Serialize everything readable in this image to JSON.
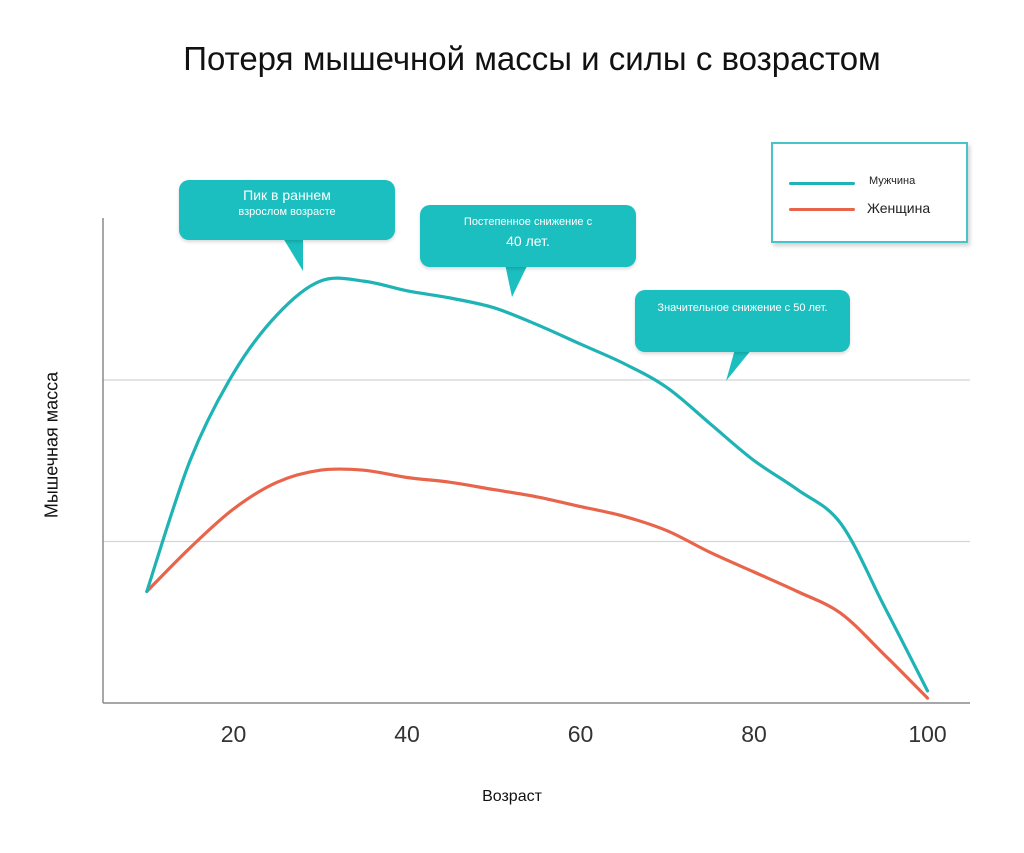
{
  "chart_data": {
    "type": "line",
    "title": "Потеря мышечной массы и силы с возрастом",
    "xlabel": "Возраст",
    "ylabel": "Мышечная масса",
    "x_ticks": [
      "20",
      "40",
      "60",
      "80",
      "100"
    ],
    "xlim": [
      0,
      105
    ],
    "ylim": [
      0,
      100
    ],
    "grid": "horizontal",
    "legend_position": "top-right",
    "series": [
      {
        "name": "Мужчина",
        "color": "#1fb3b5",
        "x": [
          10,
          15,
          20,
          25,
          30,
          35,
          40,
          45,
          50,
          55,
          60,
          65,
          70,
          75,
          80,
          85,
          90,
          95,
          100
        ],
        "y": [
          23,
          50,
          68,
          80,
          87,
          87,
          85,
          83.5,
          81.5,
          78,
          74,
          70,
          65,
          57.5,
          50,
          44,
          37,
          20,
          2.5
        ]
      },
      {
        "name": "Женщина",
        "color": "#e8644a",
        "x": [
          10,
          15,
          20,
          25,
          30,
          35,
          40,
          45,
          50,
          55,
          60,
          65,
          70,
          75,
          80,
          85,
          90,
          95,
          100
        ],
        "y": [
          23,
          32,
          40,
          45.5,
          48,
          48,
          46.5,
          45.5,
          44,
          42.5,
          40.5,
          38.5,
          35.5,
          31,
          27,
          23,
          18.5,
          10,
          1
        ]
      }
    ],
    "annotations": [
      {
        "line1": "Пик в раннем",
        "line2": "взрослом возрасте"
      },
      {
        "line1": "Постепенное снижение с",
        "line2": "40 лет."
      },
      {
        "line1": "Значительное снижение с 50 лет.",
        "line2": ""
      }
    ]
  }
}
